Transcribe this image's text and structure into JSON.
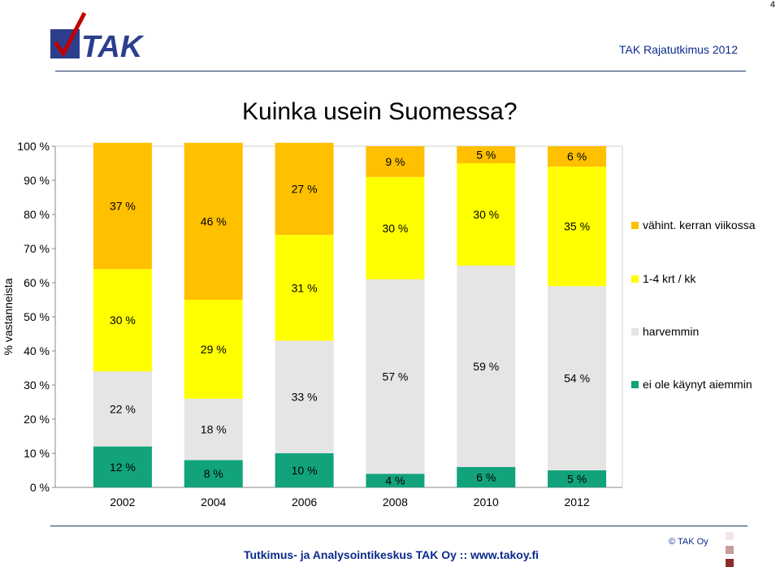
{
  "page_number": "4",
  "header": {
    "logo_text": "TAK",
    "report_title": "TAK Rajatutkimus 2012"
  },
  "chart_data": {
    "type": "bar",
    "stacked": true,
    "percent": true,
    "title": "Kuinka usein Suomessa?",
    "ylabel": "% vastanneista",
    "xlabel": "",
    "ylim": [
      0,
      100
    ],
    "yticks": [
      "0 %",
      "10 %",
      "20 %",
      "30 %",
      "40 %",
      "50 %",
      "60 %",
      "70 %",
      "80 %",
      "90 %",
      "100 %"
    ],
    "categories": [
      "2002",
      "2004",
      "2006",
      "2008",
      "2010",
      "2012"
    ],
    "series": [
      {
        "name": "ei ole käynyt aiemmin",
        "color": "#12a37c",
        "values": [
          12,
          8,
          10,
          4,
          6,
          5
        ]
      },
      {
        "name": "harvemmin",
        "color": "#e5e5e5",
        "values": [
          22,
          18,
          33,
          57,
          59,
          54
        ]
      },
      {
        "name": "1-4 krt / kk",
        "color": "#ffff00",
        "values": [
          30,
          29,
          31,
          30,
          30,
          35
        ]
      },
      {
        "name": "vähint. kerran viikossa",
        "color": "#ffc000",
        "values": [
          37,
          46,
          27,
          9,
          5,
          6
        ]
      }
    ],
    "legend_position": "right",
    "grid": false
  },
  "footer": {
    "text": "Tutkimus- ja Analysointikeskus TAK Oy   ::   www.takoy.fi",
    "copyright": "© TAK Oy"
  }
}
